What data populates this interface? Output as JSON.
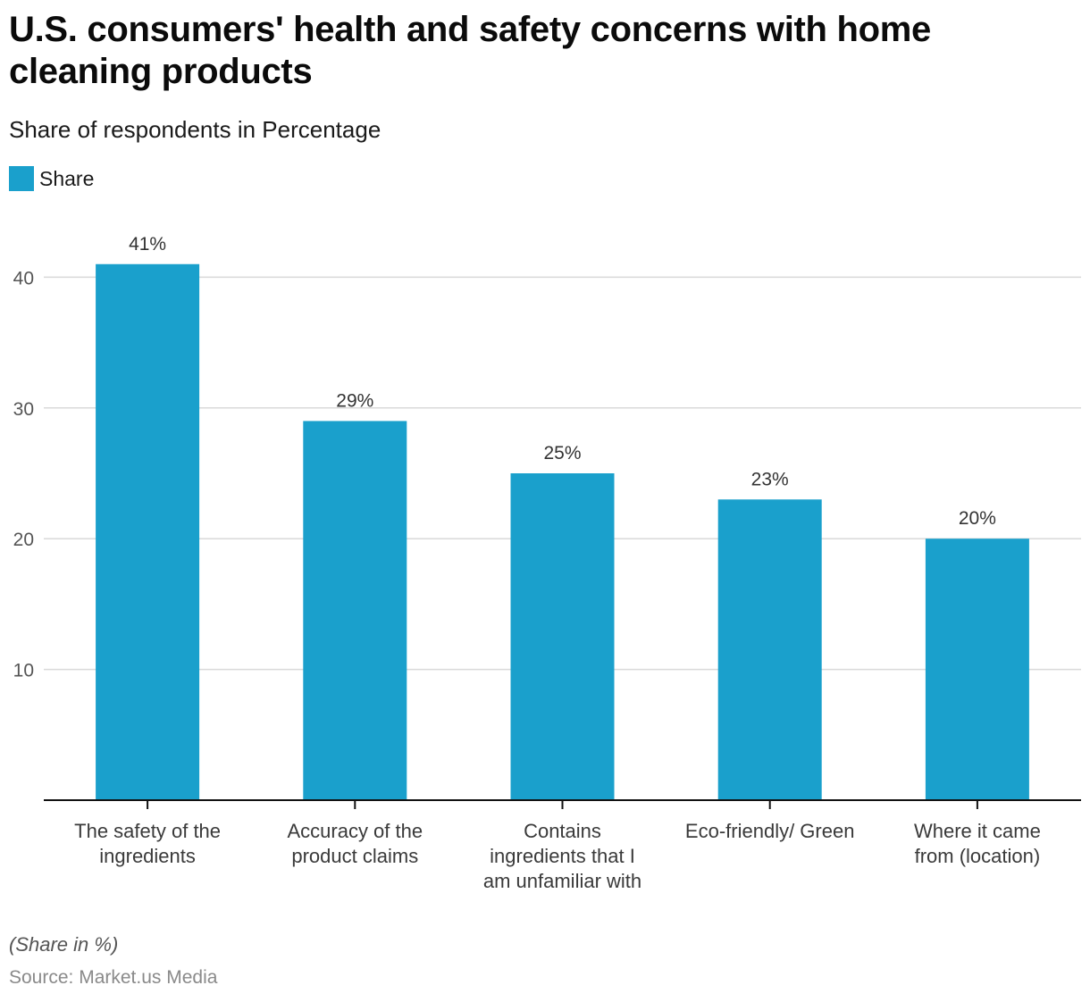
{
  "chart_data": {
    "type": "bar",
    "title": "U.S. consumers' health and safety concerns with home cleaning products",
    "subtitle": "Share of respondents in Percentage",
    "legend": [
      {
        "name": "Share",
        "color": "#1aa0cc"
      }
    ],
    "legend_position": "top-left",
    "categories": [
      [
        "The safety of the",
        "ingredients"
      ],
      [
        "Accuracy of the",
        "product claims"
      ],
      [
        "Contains",
        "ingredients that I",
        "am unfamiliar with"
      ],
      [
        "Eco-friendly/ Green"
      ],
      [
        "Where it came",
        "from (location)"
      ]
    ],
    "series": [
      {
        "name": "Share",
        "values": [
          41,
          29,
          25,
          23,
          20
        ],
        "labels": [
          "41%",
          "29%",
          "25%",
          "23%",
          "20%"
        ]
      }
    ],
    "yticks": [
      10,
      20,
      30,
      40
    ],
    "ytick_labels": [
      "10",
      "20",
      "30",
      "40"
    ],
    "ylim": [
      0,
      41
    ],
    "grid": true,
    "xlabel": "",
    "ylabel": "",
    "note": "(Share in %)",
    "source": "Source: Market.us Media"
  },
  "colors": {
    "bar": "#1aa0cc",
    "grid": "#d9d9d9",
    "axis": "#111111",
    "tick_label": "#555555",
    "value_label": "#333333",
    "category_label": "#3a3a3a"
  }
}
